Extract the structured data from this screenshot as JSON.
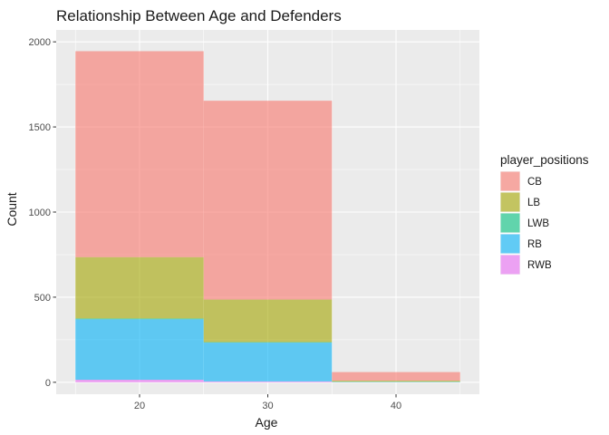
{
  "chart_data": {
    "type": "bar",
    "stacked": true,
    "title": "Relationship Between Age and Defenders",
    "xlabel": "Age",
    "ylabel": "Count",
    "xlim": [
      13.5,
      46.5
    ],
    "ylim": [
      -70,
      2070
    ],
    "x_ticks": [
      20,
      30,
      40
    ],
    "y_ticks": [
      0,
      500,
      1000,
      1500,
      2000
    ],
    "grid": true,
    "bins": [
      {
        "x0": 15,
        "x1": 25
      },
      {
        "x0": 25,
        "x1": 35
      },
      {
        "x0": 35,
        "x1": 45
      }
    ],
    "legend": {
      "title": "player_positions",
      "placement": "right"
    },
    "series": [
      {
        "name": "RWB",
        "color": "#E76BF3",
        "values": [
          15,
          5,
          0
        ]
      },
      {
        "name": "RB",
        "color": "#00B0F6",
        "values": [
          355,
          228,
          3
        ]
      },
      {
        "name": "LWB",
        "color": "#00BF7D",
        "values": [
          5,
          3,
          0
        ]
      },
      {
        "name": "LB",
        "color": "#A3A500",
        "values": [
          360,
          250,
          7
        ]
      },
      {
        "name": "CB",
        "color": "#F8766D",
        "values": [
          1210,
          1168,
          50
        ]
      }
    ],
    "legend_order": [
      "CB",
      "LB",
      "LWB",
      "RB",
      "RWB"
    ]
  }
}
